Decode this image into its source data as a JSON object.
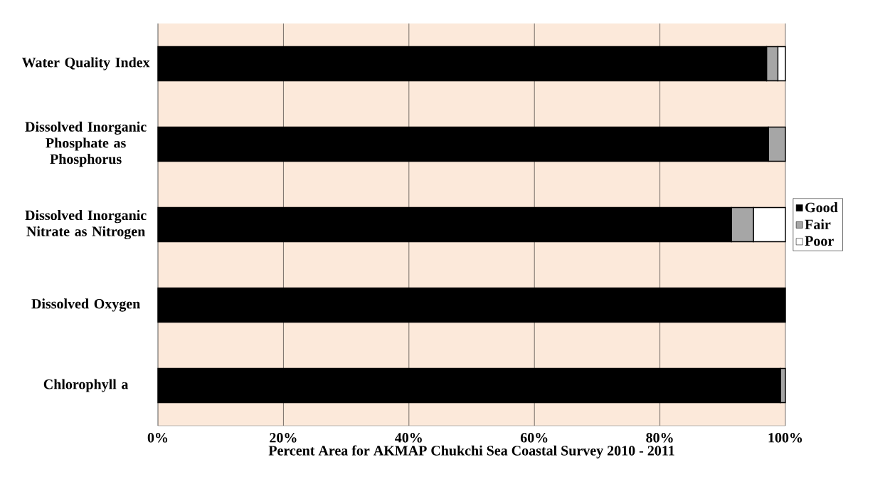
{
  "chart_data": {
    "type": "bar",
    "orientation": "horizontal",
    "stacked": true,
    "xlabel": "Percent Area for AKMAP Chukchi Sea Coastal Survey 2010 - 2011",
    "categories": [
      "Water Quality Index",
      "Dissolved Inorganic Phosphate as Phosphorus",
      "Dissolved Inorganic Nitrate as Nitrogen",
      "Dissolved Oxygen",
      "Chlorophyll a"
    ],
    "series": [
      {
        "name": "Good",
        "color": "#000000",
        "values": [
          97,
          97.3,
          91.4,
          100,
          99.2
        ]
      },
      {
        "name": "Fair",
        "color": "#a6a6a6",
        "values": [
          1.8,
          2.7,
          3.5,
          null,
          0.8
        ]
      },
      {
        "name": "Poor",
        "color": "#ffffff",
        "values": [
          1.2,
          null,
          5.1,
          null,
          null
        ]
      }
    ],
    "xlim": [
      0,
      100
    ],
    "xticks": [
      {
        "value": 0,
        "label": "0%"
      },
      {
        "value": 20,
        "label": "20%"
      },
      {
        "value": 40,
        "label": "40%"
      },
      {
        "value": 60,
        "label": "60%"
      },
      {
        "value": 80,
        "label": "80%"
      },
      {
        "value": 100,
        "label": "100%"
      }
    ],
    "grid": "x",
    "legend": "right"
  }
}
